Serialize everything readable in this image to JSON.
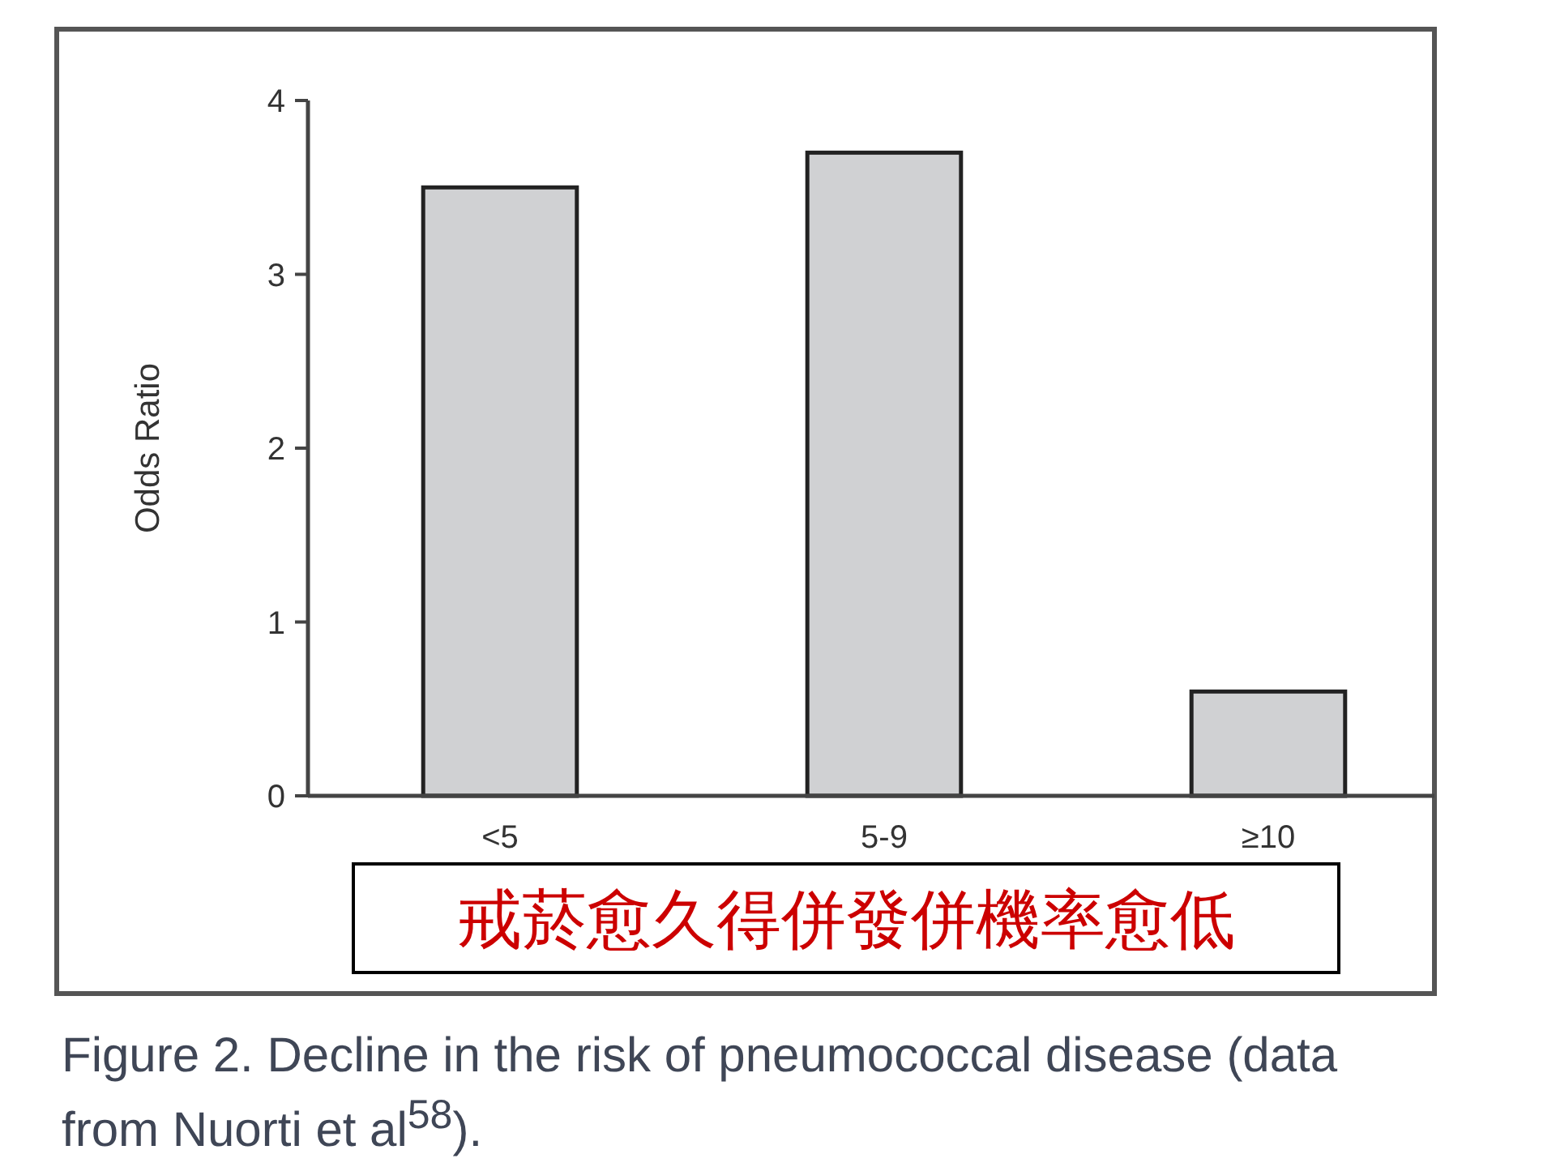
{
  "chart_data": {
    "type": "bar",
    "ylabel": "Odds Ratio",
    "categories": [
      "<5",
      "5-9",
      "≥10"
    ],
    "values": [
      3.5,
      3.7,
      0.6
    ],
    "color": "#d0d1d3",
    "ylim": [
      0,
      4
    ],
    "yticks": [
      0,
      1,
      2,
      3,
      4
    ],
    "grid": false,
    "annotations": [
      "戒菸愈久得併發併機率愈低",
      "Figure 2. Decline in the risk of pneumococcal disease (data from Nuorti et al$^{58}$)."
    ]
  }
}
